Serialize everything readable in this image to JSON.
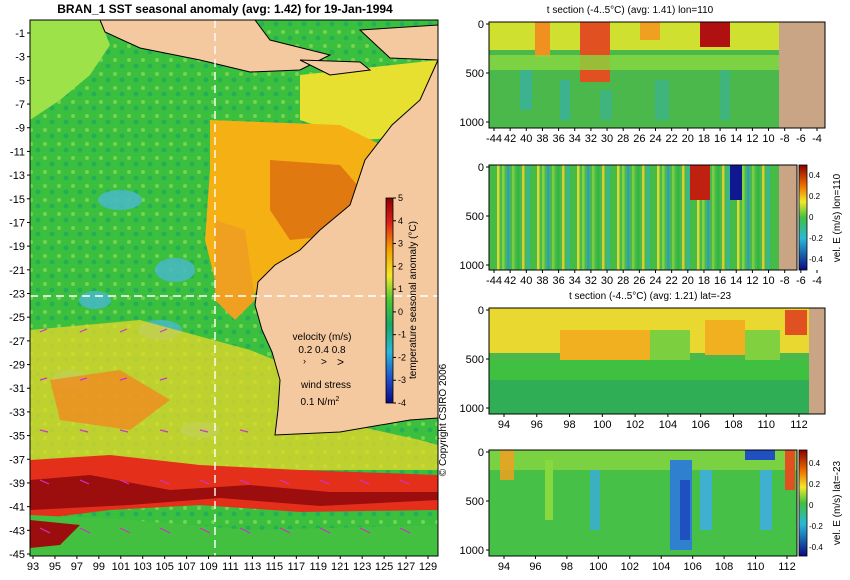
{
  "chart_data": [
    {
      "type": "heatmap",
      "title": "BRAN_1 SST seasonal anomaly (avg: 1.42) for 19-Jan-1994",
      "xticks": [
        "93",
        "95",
        "97",
        "99",
        "101",
        "103",
        "105",
        "107",
        "109",
        "111",
        "113",
        "115",
        "117",
        "119",
        "121",
        "123",
        "125",
        "127",
        "129"
      ],
      "yticks": [
        "-1",
        "-3",
        "-5",
        "-7",
        "-9",
        "-11",
        "-13",
        "-15",
        "-17",
        "-19",
        "-21",
        "-23",
        "-25",
        "-27",
        "-29",
        "-31",
        "-33",
        "-35",
        "-37",
        "-39",
        "-41",
        "-43",
        "-45"
      ],
      "xlim": [
        93,
        130
      ],
      "ylim": [
        -45,
        0
      ],
      "colorbar": {
        "label": "temperature seasonal anomaly (°C)",
        "ticks": [
          "5",
          "4",
          "3",
          "2",
          "1",
          "0",
          "-1",
          "-2",
          "-3",
          "-4"
        ]
      },
      "legend": {
        "velocity_label": "velocity (m/s)",
        "velocity_values": "0.2 0.4 0.8",
        "wind_label": "wind stress",
        "wind_value": "0.1 N/m",
        "wind_exp": "2"
      },
      "section_lines": {
        "lon": 110,
        "lat": -23
      }
    },
    {
      "type": "heatmap",
      "title": "t section (-4..5°C) (avg: 1.41) lon=110",
      "xticks": [
        "-44",
        "42",
        "40",
        "38",
        "36",
        "34",
        "32",
        "30",
        "28",
        "26",
        "24",
        "22",
        "20",
        "18",
        "16",
        "14",
        "12",
        "10",
        "-8",
        "-6",
        "-4"
      ],
      "yticks": [
        "0",
        "500",
        "1000"
      ],
      "ylim": [
        1000,
        0
      ]
    },
    {
      "type": "heatmap",
      "title": "",
      "ylabel": "vel. E (m/s) lon=110",
      "xticks": [
        "-44",
        "42",
        "40",
        "38",
        "36",
        "34",
        "32",
        "30",
        "28",
        "26",
        "24",
        "22",
        "20",
        "18",
        "16",
        "14",
        "12",
        "10",
        "-8",
        "-6",
        "-4"
      ],
      "yticks": [
        "0",
        "500",
        "1000"
      ],
      "colorbar_ticks": [
        "0.4",
        "0.2",
        "0",
        "-0.2",
        "-0.4"
      ]
    },
    {
      "type": "heatmap",
      "title": "t section (-4..5°C) (avg: 1.21) lat=-23",
      "xticks": [
        "94",
        "96",
        "98",
        "100",
        "102",
        "104",
        "106",
        "108",
        "110",
        "112"
      ],
      "yticks": [
        "0",
        "500",
        "1000"
      ]
    },
    {
      "type": "heatmap",
      "title": "",
      "ylabel": "vel. E (m/s) lat=-23",
      "xticks": [
        "94",
        "96",
        "98",
        "100",
        "102",
        "104",
        "106",
        "108",
        "110",
        "112"
      ],
      "yticks": [
        "0",
        "500",
        "1000"
      ],
      "colorbar_ticks": [
        "0.4",
        "0.2",
        "0",
        "-0.2",
        "-0.4"
      ]
    }
  ],
  "copyright": "© Copyright CSIRO 2006"
}
